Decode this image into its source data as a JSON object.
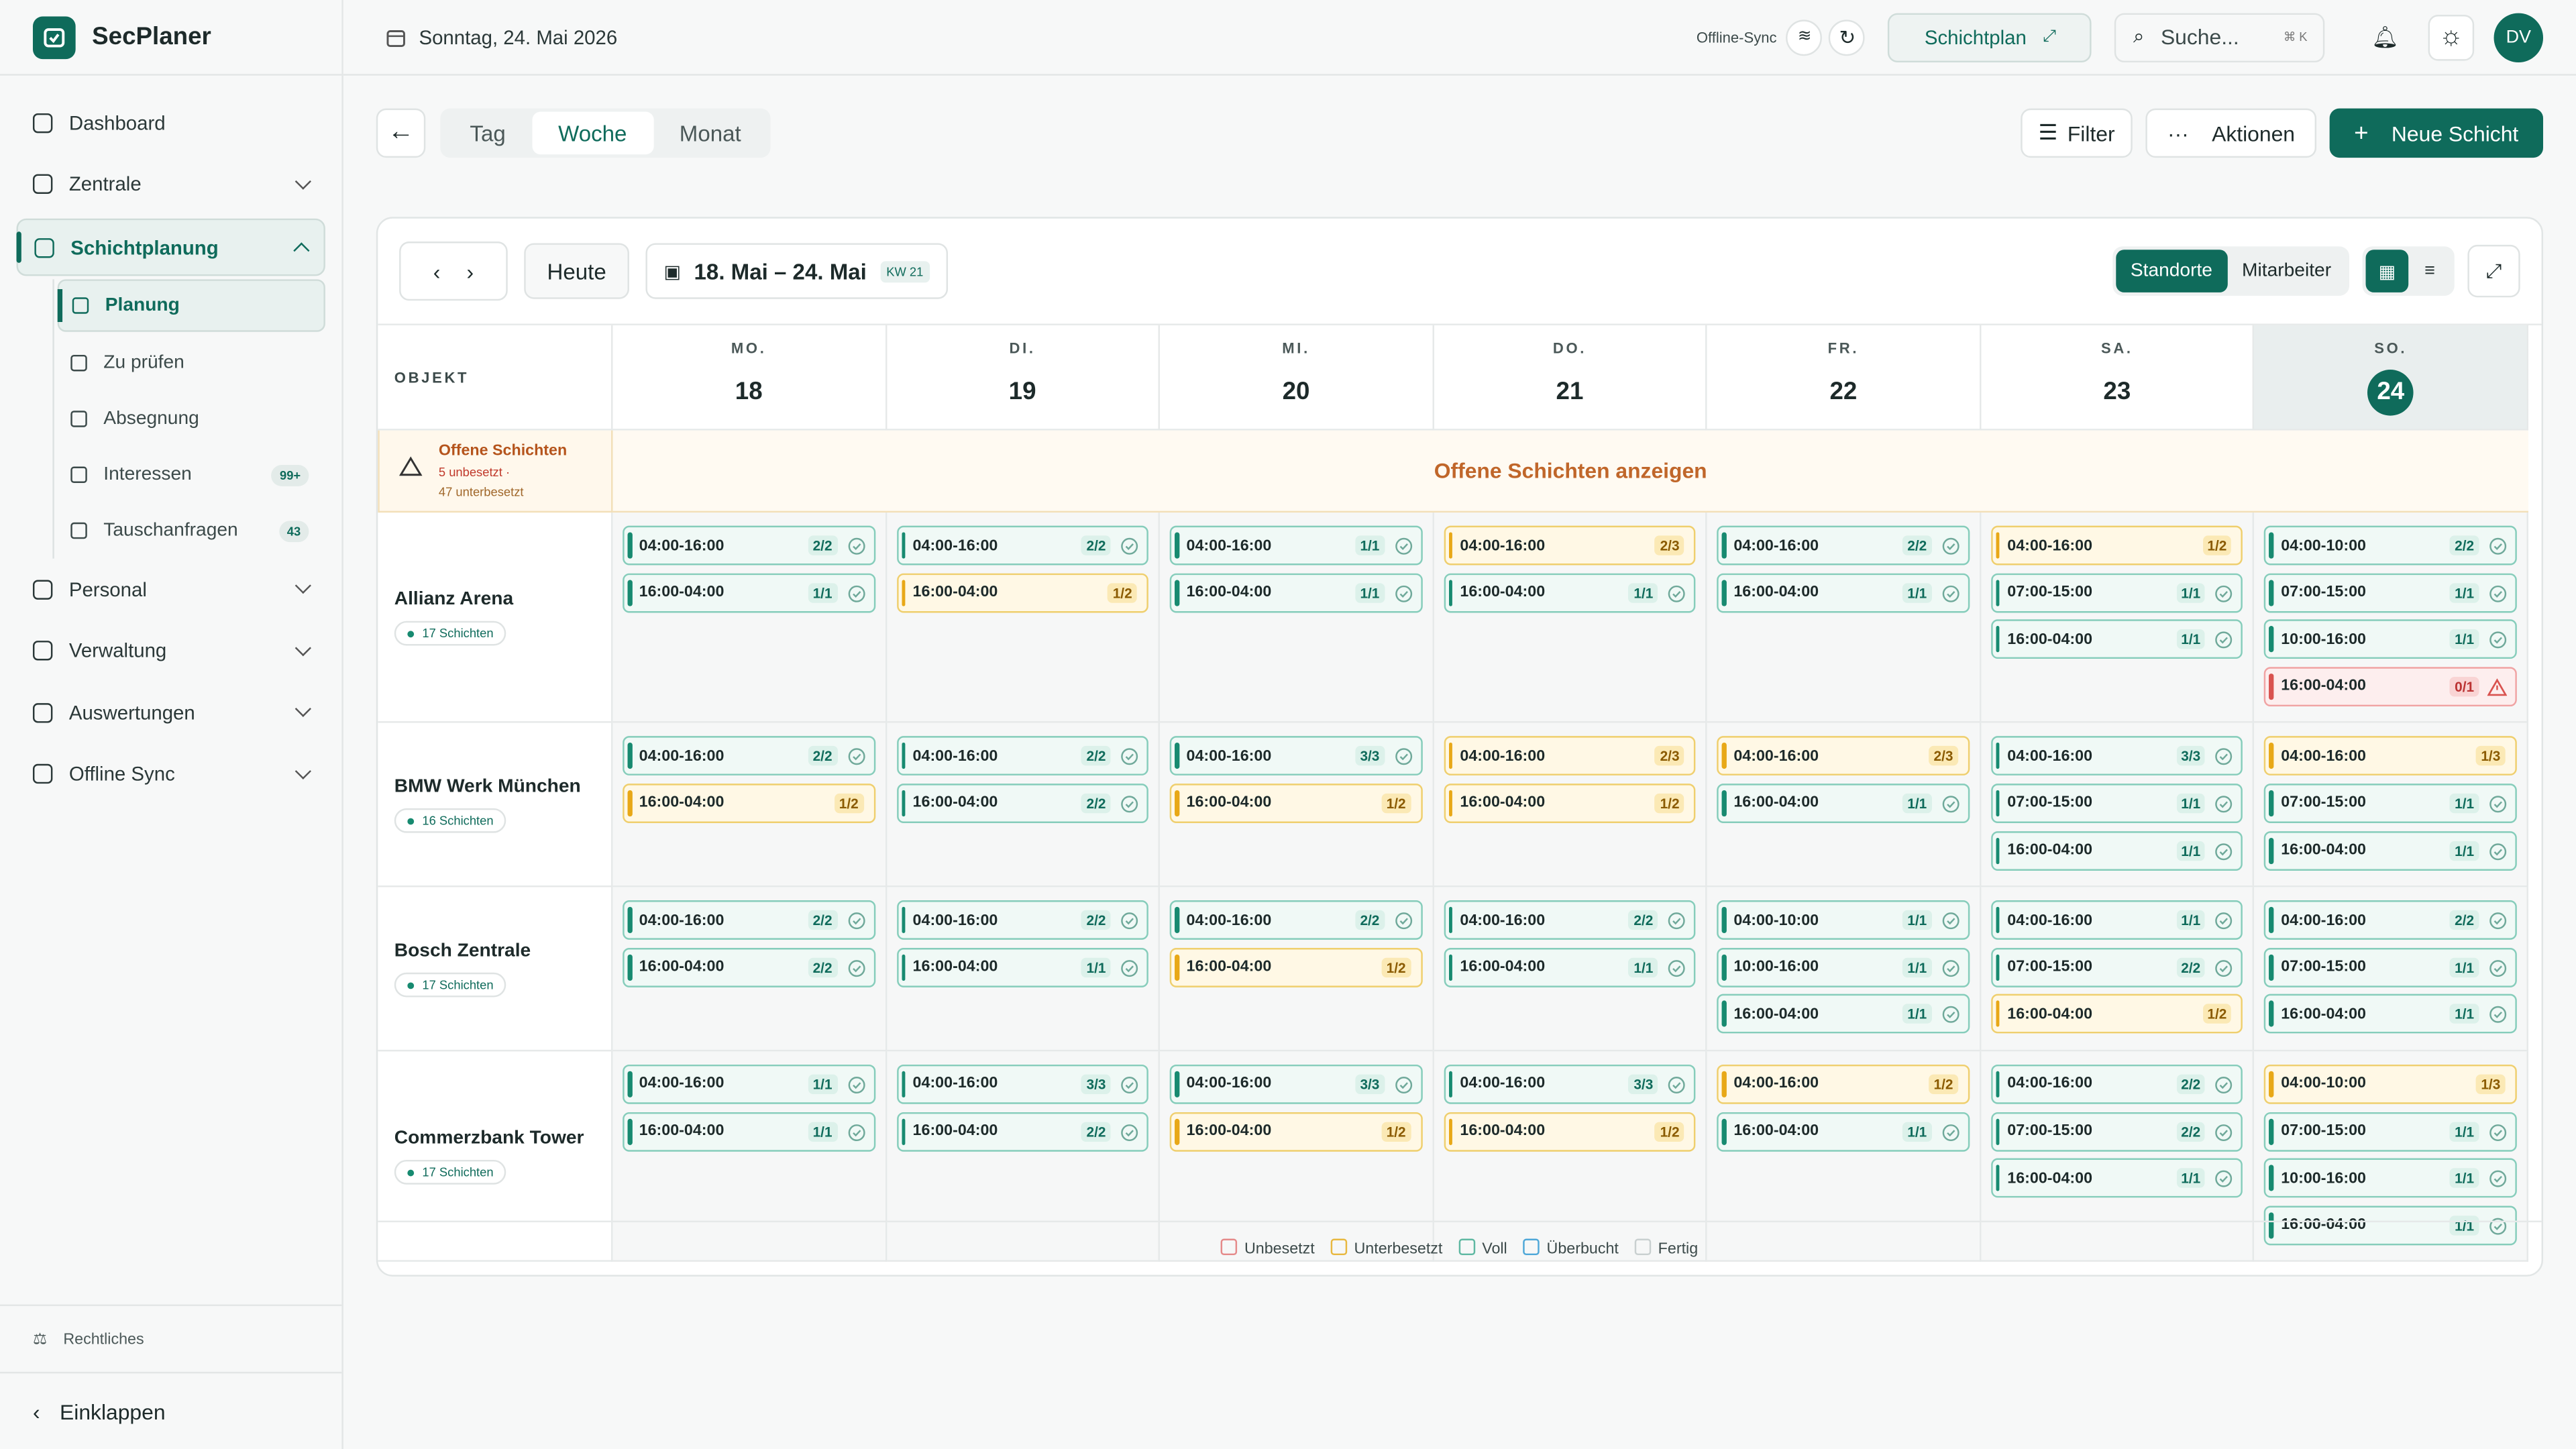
{
  "sidebar": {
    "brand": "SecPlaner",
    "nav": [
      {
        "label": "Dashboard",
        "chevron": false
      },
      {
        "label": "Zentrale",
        "chevron": true
      },
      {
        "label": "Schichtplanung",
        "chevron": true,
        "active": true,
        "children": [
          {
            "label": "Planung",
            "active": true
          },
          {
            "label": "Zu prüfen"
          },
          {
            "label": "Absegnung"
          },
          {
            "label": "Interessen",
            "badge": "99+"
          },
          {
            "label": "Tauschanfragen",
            "badge": "43"
          }
        ]
      },
      {
        "label": "Personal",
        "chevron": true
      },
      {
        "label": "Verwaltung",
        "chevron": true
      },
      {
        "label": "Auswertungen",
        "chevron": true
      },
      {
        "label": "Offline Sync",
        "chevron": true
      }
    ],
    "legal": "Rechtliches",
    "collapse": "Einklappen"
  },
  "header": {
    "date": "Sonntag, 24. Mai 2026",
    "sync": "Offline-Sync",
    "view": "Schichtplan",
    "search": "Suche...",
    "shortcut": "⌘ K",
    "avatar": "DV"
  },
  "toolbar": {
    "tabs": [
      "Tag",
      "Woche",
      "Monat"
    ],
    "active_tab": 1,
    "filter": "Filter",
    "actions": "Aktionen",
    "new": "Neue Schicht"
  },
  "calendar": {
    "today_button": "Heute",
    "range": "18. Mai – 24. Mai",
    "week": "KW 21",
    "views": [
      "Standorte",
      "Mitarbeiter"
    ],
    "object_header": "OBJEKT",
    "days": [
      {
        "dow": "MO.",
        "num": 18
      },
      {
        "dow": "DI.",
        "num": 19
      },
      {
        "dow": "MI.",
        "num": 20
      },
      {
        "dow": "DO.",
        "num": 21
      },
      {
        "dow": "FR.",
        "num": 22
      },
      {
        "dow": "SA.",
        "num": 23
      },
      {
        "dow": "SO.",
        "num": 24,
        "today": true
      }
    ],
    "open": {
      "title": "Offene Schichten",
      "unset": "5 unbesetzt ·",
      "under": "47 unterbesetzt",
      "link": "Offene Schichten anzeigen"
    },
    "objects": [
      {
        "name": "Allianz Arena",
        "count": "17 Schichten",
        "days": [
          [
            {
              "time": "04:00-16:00",
              "fill": "2/2",
              "status": "full"
            },
            {
              "time": "16:00-04:00",
              "fill": "1/1",
              "status": "full"
            }
          ],
          [
            {
              "time": "04:00-16:00",
              "fill": "2/2",
              "status": "full"
            },
            {
              "time": "16:00-04:00",
              "fill": "1/2",
              "status": "under"
            }
          ],
          [
            {
              "time": "04:00-16:00",
              "fill": "1/1",
              "status": "full"
            },
            {
              "time": "16:00-04:00",
              "fill": "1/1",
              "status": "full"
            }
          ],
          [
            {
              "time": "04:00-16:00",
              "fill": "2/3",
              "status": "under"
            },
            {
              "time": "16:00-04:00",
              "fill": "1/1",
              "status": "full"
            }
          ],
          [
            {
              "time": "04:00-16:00",
              "fill": "2/2",
              "status": "full"
            },
            {
              "time": "16:00-04:00",
              "fill": "1/1",
              "status": "full"
            }
          ],
          [
            {
              "time": "04:00-16:00",
              "fill": "1/2",
              "status": "under"
            },
            {
              "time": "07:00-15:00",
              "fill": "1/1",
              "status": "full"
            },
            {
              "time": "16:00-04:00",
              "fill": "1/1",
              "status": "full"
            }
          ],
          [
            {
              "time": "04:00-10:00",
              "fill": "2/2",
              "status": "full"
            },
            {
              "time": "07:00-15:00",
              "fill": "1/1",
              "status": "full"
            },
            {
              "time": "10:00-16:00",
              "fill": "1/1",
              "status": "full"
            },
            {
              "time": "16:00-04:00",
              "fill": "0/1",
              "status": "empty"
            }
          ]
        ]
      },
      {
        "name": "BMW Werk München",
        "count": "16 Schichten",
        "days": [
          [
            {
              "time": "04:00-16:00",
              "fill": "2/2",
              "status": "full"
            },
            {
              "time": "16:00-04:00",
              "fill": "1/2",
              "status": "under"
            }
          ],
          [
            {
              "time": "04:00-16:00",
              "fill": "2/2",
              "status": "full"
            },
            {
              "time": "16:00-04:00",
              "fill": "2/2",
              "status": "full"
            }
          ],
          [
            {
              "time": "04:00-16:00",
              "fill": "3/3",
              "status": "full"
            },
            {
              "time": "16:00-04:00",
              "fill": "1/2",
              "status": "under"
            }
          ],
          [
            {
              "time": "04:00-16:00",
              "fill": "2/3",
              "status": "under"
            },
            {
              "time": "16:00-04:00",
              "fill": "1/2",
              "status": "under"
            }
          ],
          [
            {
              "time": "04:00-16:00",
              "fill": "2/3",
              "status": "under"
            },
            {
              "time": "16:00-04:00",
              "fill": "1/1",
              "status": "full"
            }
          ],
          [
            {
              "time": "04:00-16:00",
              "fill": "3/3",
              "status": "full"
            },
            {
              "time": "07:00-15:00",
              "fill": "1/1",
              "status": "full"
            },
            {
              "time": "16:00-04:00",
              "fill": "1/1",
              "status": "full"
            }
          ],
          [
            {
              "time": "04:00-16:00",
              "fill": "1/3",
              "status": "under"
            },
            {
              "time": "07:00-15:00",
              "fill": "1/1",
              "status": "full"
            },
            {
              "time": "16:00-04:00",
              "fill": "1/1",
              "status": "full"
            }
          ]
        ]
      },
      {
        "name": "Bosch Zentrale",
        "count": "17 Schichten",
        "days": [
          [
            {
              "time": "04:00-16:00",
              "fill": "2/2",
              "status": "full"
            },
            {
              "time": "16:00-04:00",
              "fill": "2/2",
              "status": "full"
            }
          ],
          [
            {
              "time": "04:00-16:00",
              "fill": "2/2",
              "status": "full"
            },
            {
              "time": "16:00-04:00",
              "fill": "1/1",
              "status": "full"
            }
          ],
          [
            {
              "time": "04:00-16:00",
              "fill": "2/2",
              "status": "full"
            },
            {
              "time": "16:00-04:00",
              "fill": "1/2",
              "status": "under"
            }
          ],
          [
            {
              "time": "04:00-16:00",
              "fill": "2/2",
              "status": "full"
            },
            {
              "time": "16:00-04:00",
              "fill": "1/1",
              "status": "full"
            }
          ],
          [
            {
              "time": "04:00-10:00",
              "fill": "1/1",
              "status": "full"
            },
            {
              "time": "10:00-16:00",
              "fill": "1/1",
              "status": "full"
            },
            {
              "time": "16:00-04:00",
              "fill": "1/1",
              "status": "full"
            }
          ],
          [
            {
              "time": "04:00-16:00",
              "fill": "1/1",
              "status": "full"
            },
            {
              "time": "07:00-15:00",
              "fill": "2/2",
              "status": "full"
            },
            {
              "time": "16:00-04:00",
              "fill": "1/2",
              "status": "under"
            }
          ],
          [
            {
              "time": "04:00-16:00",
              "fill": "2/2",
              "status": "full"
            },
            {
              "time": "07:00-15:00",
              "fill": "1/1",
              "status": "full"
            },
            {
              "time": "16:00-04:00",
              "fill": "1/1",
              "status": "full"
            }
          ]
        ]
      },
      {
        "name": "Commerzbank Tower",
        "count": "17 Schichten",
        "days": [
          [
            {
              "time": "04:00-16:00",
              "fill": "1/1",
              "status": "full"
            },
            {
              "time": "16:00-04:00",
              "fill": "1/1",
              "status": "full"
            }
          ],
          [
            {
              "time": "04:00-16:00",
              "fill": "3/3",
              "status": "full"
            },
            {
              "time": "16:00-04:00",
              "fill": "2/2",
              "status": "full"
            }
          ],
          [
            {
              "time": "04:00-16:00",
              "fill": "3/3",
              "status": "full"
            },
            {
              "time": "16:00-04:00",
              "fill": "1/2",
              "status": "under"
            }
          ],
          [
            {
              "time": "04:00-16:00",
              "fill": "3/3",
              "status": "full"
            },
            {
              "time": "16:00-04:00",
              "fill": "1/2",
              "status": "under"
            }
          ],
          [
            {
              "time": "04:00-16:00",
              "fill": "1/2",
              "status": "under"
            },
            {
              "time": "16:00-04:00",
              "fill": "1/1",
              "status": "full"
            }
          ],
          [
            {
              "time": "04:00-16:00",
              "fill": "2/2",
              "status": "full"
            },
            {
              "time": "07:00-15:00",
              "fill": "2/2",
              "status": "full"
            },
            {
              "time": "16:00-04:00",
              "fill": "1/1",
              "status": "full"
            }
          ],
          [
            {
              "time": "04:00-10:00",
              "fill": "1/3",
              "status": "under"
            },
            {
              "time": "07:00-15:00",
              "fill": "1/1",
              "status": "full"
            },
            {
              "time": "10:00-16:00",
              "fill": "1/1",
              "status": "full"
            },
            {
              "time": "16:00-04:00",
              "fill": "1/1",
              "status": "full"
            }
          ]
        ]
      }
    ],
    "legend": [
      {
        "label": "Unbesetzt",
        "color": "#e58a8a"
      },
      {
        "label": "Unterbesetzt",
        "color": "#e8b840"
      },
      {
        "label": "Voll",
        "color": "#5fb8a2"
      },
      {
        "label": "Überbucht",
        "color": "#4ea7d8"
      },
      {
        "label": "Fertig",
        "color": "#c9d0d0"
      }
    ]
  }
}
